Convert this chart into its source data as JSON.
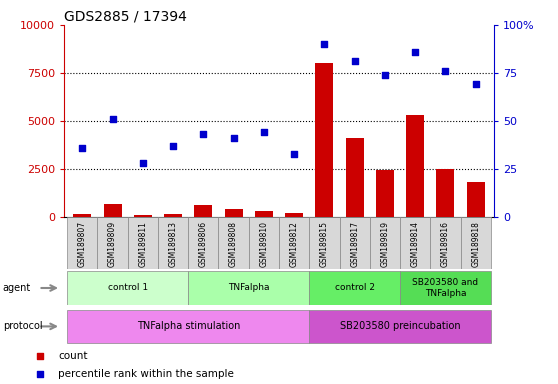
{
  "title": "GDS2885 / 17394",
  "samples": [
    "GSM189807",
    "GSM189809",
    "GSM189811",
    "GSM189813",
    "GSM189806",
    "GSM189808",
    "GSM189810",
    "GSM189812",
    "GSM189815",
    "GSM189817",
    "GSM189819",
    "GSM189814",
    "GSM189816",
    "GSM189818"
  ],
  "counts": [
    150,
    700,
    80,
    150,
    600,
    400,
    300,
    200,
    8000,
    4100,
    2450,
    5300,
    2500,
    1800
  ],
  "percentile": [
    36,
    51,
    28,
    37,
    43,
    41,
    44,
    33,
    90,
    81,
    74,
    86,
    76,
    69
  ],
  "agent_groups": [
    {
      "label": "control 1",
      "start": 0,
      "end": 3,
      "color": "#ccffcc"
    },
    {
      "label": "TNFalpha",
      "start": 4,
      "end": 7,
      "color": "#aaffaa"
    },
    {
      "label": "control 2",
      "start": 8,
      "end": 10,
      "color": "#66ee66"
    },
    {
      "label": "SB203580 and\nTNFalpha",
      "start": 11,
      "end": 13,
      "color": "#55dd55"
    }
  ],
  "protocol_groups": [
    {
      "label": "TNFalpha stimulation",
      "start": 0,
      "end": 7,
      "color": "#ee88ee"
    },
    {
      "label": "SB203580 preincubation",
      "start": 8,
      "end": 13,
      "color": "#cc55cc"
    }
  ],
  "bar_color": "#cc0000",
  "scatter_color": "#0000cc",
  "ylim_left": [
    0,
    10000
  ],
  "yticks_left": [
    0,
    2500,
    5000,
    7500,
    10000
  ],
  "ytick_labels_left": [
    "0",
    "2500",
    "5000",
    "7500",
    "10000"
  ],
  "yticks_right_vals": [
    0,
    2500,
    5000,
    7500,
    10000
  ],
  "ytick_labels_right": [
    "0",
    "25",
    "50",
    "75",
    "100%"
  ],
  "bg_color": "#ffffff",
  "tick_label_color_left": "#cc0000",
  "tick_label_color_right": "#0000cc",
  "sample_box_color": "#d8d8d8",
  "label_arrow_color": "#888888"
}
